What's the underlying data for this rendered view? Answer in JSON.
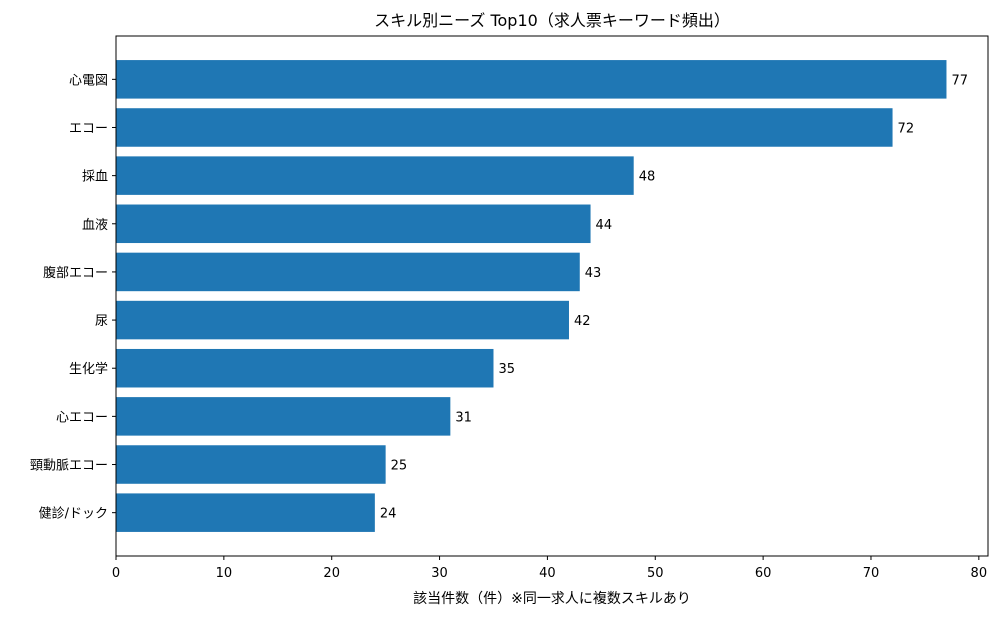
{
  "chart_data": {
    "type": "bar",
    "orientation": "horizontal",
    "title": "スキル別ニーズ Top10（求人票キーワード頻出）",
    "xlabel": "該当件数（件）※同一求人に複数スキルあり",
    "ylabel": "",
    "categories": [
      "心電図",
      "エコー",
      "採血",
      "血液",
      "腹部エコー",
      "尿",
      "生化学",
      "心エコー",
      "頸動脈エコー",
      "健診/ドック"
    ],
    "values": [
      77,
      72,
      48,
      44,
      43,
      42,
      35,
      31,
      25,
      24
    ],
    "data_labels": [
      "77",
      "72",
      "48",
      "44",
      "43",
      "42",
      "35",
      "31",
      "25",
      "24"
    ],
    "xlim": [
      0,
      80.85
    ],
    "xticks": [
      0,
      10,
      20,
      30,
      40,
      50,
      60,
      70,
      80
    ],
    "xtick_labels": [
      "0",
      "10",
      "20",
      "30",
      "40",
      "50",
      "60",
      "70",
      "80"
    ],
    "grid": false,
    "bar_color": "#1f77b4"
  }
}
